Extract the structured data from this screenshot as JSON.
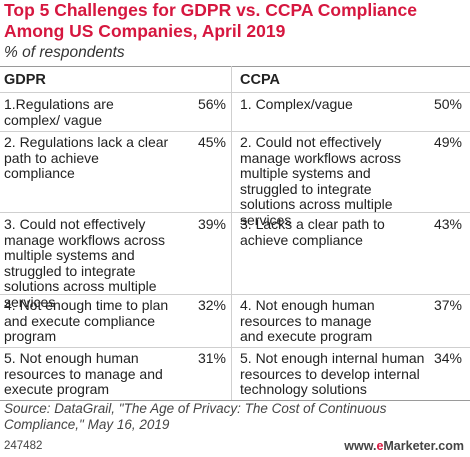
{
  "header": {
    "title": "Top 5 Challenges for GDPR vs. CCPA Compliance Among US Companies, April 2019",
    "subtitle": "% of respondents"
  },
  "chart_data": {
    "type": "table",
    "columns": [
      "GDPR",
      "CCPA"
    ],
    "rows": [
      {
        "gdpr": {
          "label": "1.Regulations are complex/ vague",
          "value": "56%"
        },
        "ccpa": {
          "label": "1. Complex/vague",
          "value": "50%"
        }
      },
      {
        "gdpr": {
          "label": "2. Regulations lack a clear path to achieve compliance",
          "value": "45%"
        },
        "ccpa": {
          "label": "2. Could not effectively manage workflows across multiple systems and struggled to integrate solutions across multiple services",
          "value": "49%"
        }
      },
      {
        "gdpr": {
          "label": "3. Could not effectively manage workflows across multiple systems and struggled to integrate solutions across multiple services",
          "value": "39%"
        },
        "ccpa": {
          "label": "3. Lacks a clear path to achieve compliance",
          "value": "43%"
        }
      },
      {
        "gdpr": {
          "label": "4. Not enough time to plan and execute compliance program",
          "value": "32%"
        },
        "ccpa": {
          "label": "4. Not enough human resources to manage and execute program",
          "value": "37%"
        }
      },
      {
        "gdpr": {
          "label": "5. Not enough human resources to manage and execute program",
          "value": "31%"
        },
        "ccpa": {
          "label": "5. Not enough internal human resources to develop internal technology solutions",
          "value": "34%"
        }
      }
    ]
  },
  "footer": {
    "source": "Source: DataGrail, \"The Age of Privacy: The Cost of Continuous Compliance,\" May 16, 2019",
    "chart_id": "247482",
    "brand_prefix": "www.",
    "brand_accent": "e",
    "brand_suffix": "Marketer.com"
  },
  "colors": {
    "title": "#d6173f",
    "text": "#222222",
    "rule": "#cfcfcf",
    "brand_accent": "#d6173f"
  }
}
